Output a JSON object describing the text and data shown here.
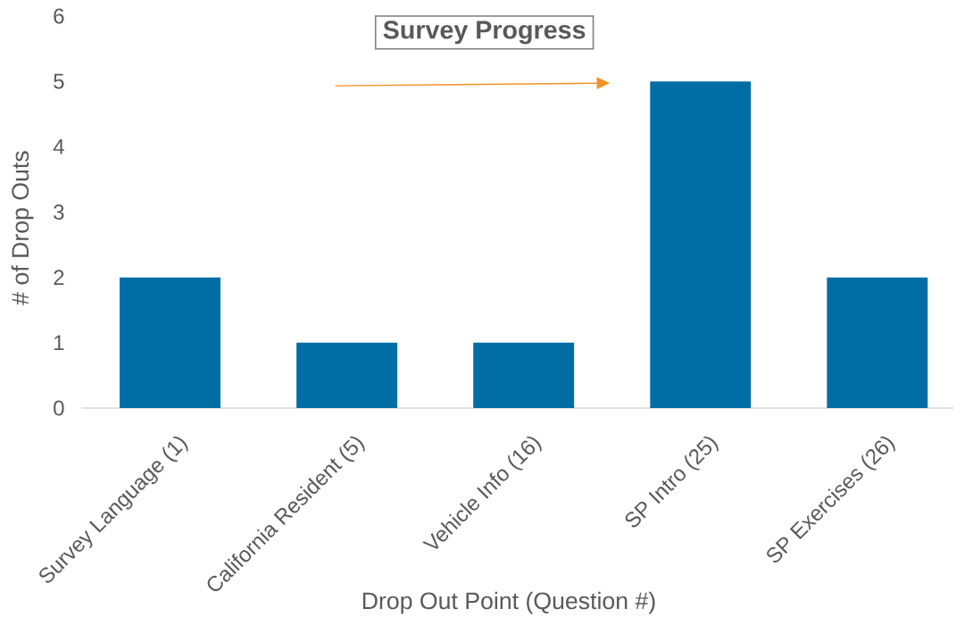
{
  "chart_data": {
    "type": "bar",
    "title": "Survey Progress",
    "xlabel": "Drop Out Point (Question #)",
    "ylabel": "# of Drop Outs",
    "categories": [
      "Survey Language (1)",
      "California Resident (5)",
      "Vehicle Info (16)",
      "SP Intro (25)",
      "SP Exercises (26)"
    ],
    "values": [
      2,
      1,
      1,
      5,
      2
    ],
    "color": "#006ea4",
    "ylim": [
      0,
      6
    ],
    "yticks": [
      0,
      1,
      2,
      3,
      4,
      5,
      6
    ]
  }
}
